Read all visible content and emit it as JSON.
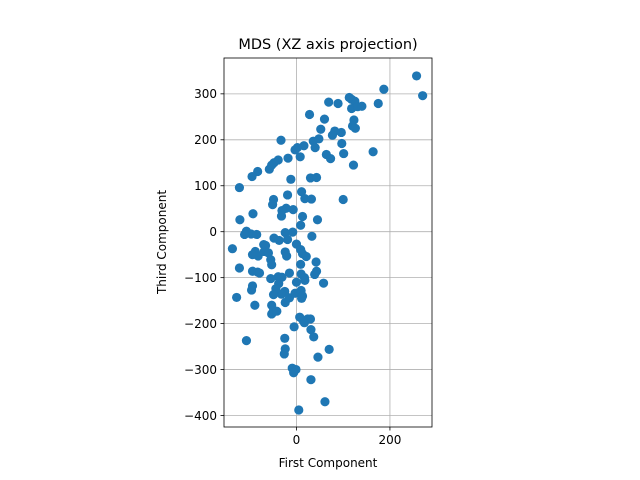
{
  "chart_data": {
    "type": "scatter",
    "title": "MDS (XZ axis projection)",
    "xlabel": "First Component",
    "ylabel": "Third Component",
    "xlim": [
      -155,
      290
    ],
    "ylim": [
      -425,
      378
    ],
    "xticks": [
      0,
      200
    ],
    "yticks": [
      -400,
      -300,
      -200,
      -100,
      0,
      100,
      200,
      300
    ],
    "grid": true,
    "marker_color": "#1f77b4",
    "series": [
      {
        "points": [
          [
            257,
            339
          ],
          [
            270,
            296
          ],
          [
            187,
            310
          ],
          [
            175,
            279
          ],
          [
            118,
            288
          ],
          [
            125,
            284
          ],
          [
            118,
            268
          ],
          [
            131,
            272
          ],
          [
            140,
            273
          ],
          [
            113,
            292
          ],
          [
            123,
            243
          ],
          [
            120,
            230
          ],
          [
            126,
            225
          ],
          [
            89,
            279
          ],
          [
            69,
            282
          ],
          [
            96,
            216
          ],
          [
            97,
            192
          ],
          [
            82,
            219
          ],
          [
            77,
            210
          ],
          [
            60,
            245
          ],
          [
            52,
            223
          ],
          [
            28,
            255
          ],
          [
            36,
            197
          ],
          [
            48,
            202
          ],
          [
            40,
            183
          ],
          [
            16,
            187
          ],
          [
            2,
            183
          ],
          [
            -3,
            178
          ],
          [
            8,
            163
          ],
          [
            -33,
            199
          ],
          [
            -18,
            160
          ],
          [
            -39,
            156
          ],
          [
            -48,
            150
          ],
          [
            -58,
            136
          ],
          [
            -53,
            145
          ],
          [
            -83,
            131
          ],
          [
            -95,
            120
          ],
          [
            -122,
            96
          ],
          [
            -12,
            114
          ],
          [
            30,
            117
          ],
          [
            43,
            118
          ],
          [
            64,
            168
          ],
          [
            73,
            159
          ],
          [
            101,
            170
          ],
          [
            122,
            145
          ],
          [
            164,
            174
          ],
          [
            100,
            70
          ],
          [
            11,
            87
          ],
          [
            18,
            72
          ],
          [
            32,
            71
          ],
          [
            -19,
            80
          ],
          [
            -7,
            48
          ],
          [
            -22,
            51
          ],
          [
            -31,
            46
          ],
          [
            -49,
            70
          ],
          [
            -51,
            59
          ],
          [
            -32,
            34
          ],
          [
            13,
            33
          ],
          [
            9,
            14
          ],
          [
            45,
            26
          ],
          [
            -121,
            26
          ],
          [
            -93,
            39
          ],
          [
            -107,
            1
          ],
          [
            -97,
            -5
          ],
          [
            -137,
            -37
          ],
          [
            -111,
            -6
          ],
          [
            -85,
            -6
          ],
          [
            -70,
            -28
          ],
          [
            -66,
            -30
          ],
          [
            -88,
            -43
          ],
          [
            -82,
            -53
          ],
          [
            -69,
            -43
          ],
          [
            -60,
            -46
          ],
          [
            -48,
            -14
          ],
          [
            -37,
            -19
          ],
          [
            -24,
            -2
          ],
          [
            -8,
            -1
          ],
          [
            -19,
            -17
          ],
          [
            -24,
            -44
          ],
          [
            -21,
            -53
          ],
          [
            0,
            -27
          ],
          [
            9,
            -39
          ],
          [
            13,
            -48
          ],
          [
            33,
            -10
          ],
          [
            21,
            -54
          ],
          [
            9,
            -71
          ],
          [
            42,
            -66
          ],
          [
            43,
            -86
          ],
          [
            39,
            -93
          ],
          [
            58,
            -112
          ],
          [
            -94,
            -50
          ],
          [
            -122,
            -79
          ],
          [
            -94,
            -86
          ],
          [
            -83,
            -88
          ],
          [
            -79,
            -90
          ],
          [
            -55,
            -61
          ],
          [
            -53,
            -72
          ],
          [
            -39,
            -98
          ],
          [
            -31,
            -99
          ],
          [
            -38,
            -113
          ],
          [
            -15,
            -90
          ],
          [
            10,
            -92
          ],
          [
            17,
            -100
          ],
          [
            18,
            -106
          ],
          [
            0,
            -110
          ],
          [
            -25,
            -130
          ],
          [
            -32,
            -136
          ],
          [
            -55,
            -102
          ],
          [
            -44,
            -124
          ],
          [
            -49,
            -137
          ],
          [
            -94,
            -118
          ],
          [
            -96,
            -127
          ],
          [
            -128,
            -143
          ],
          [
            -89,
            -160
          ],
          [
            -53,
            -160
          ],
          [
            -49,
            -171
          ],
          [
            -53,
            -179
          ],
          [
            -42,
            -173
          ],
          [
            -24,
            -154
          ],
          [
            -15,
            -144
          ],
          [
            -3,
            -134
          ],
          [
            10,
            -128
          ],
          [
            13,
            -140
          ],
          [
            11,
            -145
          ],
          [
            24,
            -190
          ],
          [
            30,
            -190
          ],
          [
            14,
            -193
          ],
          [
            7,
            -186
          ],
          [
            17,
            -198
          ],
          [
            31,
            -213
          ],
          [
            37,
            -229
          ],
          [
            -25,
            -232
          ],
          [
            -24,
            -255
          ],
          [
            -26,
            -266
          ],
          [
            -5,
            -207
          ],
          [
            70,
            -256
          ],
          [
            46,
            -273
          ],
          [
            -9,
            -297
          ],
          [
            -1,
            -300
          ],
          [
            -6,
            -307
          ],
          [
            31,
            -322
          ],
          [
            61,
            -370
          ],
          [
            5,
            -388
          ],
          [
            -107,
            -237
          ]
        ]
      }
    ]
  }
}
